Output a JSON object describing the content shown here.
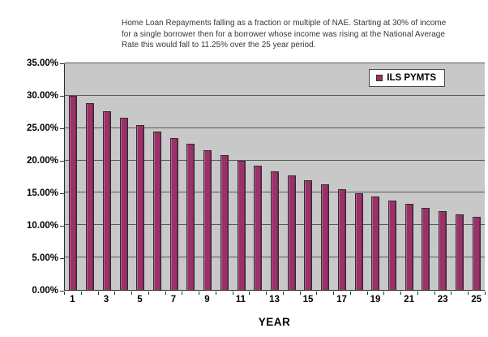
{
  "title": {
    "text": "Home Loan Repayments falling as a fraction or multiple of NAE. Starting at 30% of income for a single borrower then for a borrower whose income was rising at the National Average Rate this would fall to 11.25% over the 25 year period."
  },
  "legend": {
    "label": "ILS PYMTS",
    "marker_color": "#9b3168"
  },
  "axes": {
    "x_label": "YEAR",
    "y_tick_labels": [
      "35.00%",
      "30.00%",
      "25.00%",
      "20.00%",
      "15.00%",
      "10.00%",
      "5.00%",
      "0.00%"
    ],
    "x_tick_labels": [
      "1",
      "3",
      "5",
      "7",
      "9",
      "11",
      "13",
      "15",
      "17",
      "19",
      "21",
      "23",
      "25"
    ]
  },
  "chart_data": {
    "type": "bar",
    "title": "Home Loan Repayments falling as a fraction or multiple of NAE. Starting at 30% of income for a single borrower then for a borrower whose income was rising at the National Average Rate this would fall to 11.25% over the 25 year period.",
    "categories": [
      1,
      2,
      3,
      4,
      5,
      6,
      7,
      8,
      9,
      10,
      11,
      12,
      13,
      14,
      15,
      16,
      17,
      18,
      19,
      20,
      21,
      22,
      23,
      24,
      25
    ],
    "series": [
      {
        "name": "ILS PYMTS",
        "values": [
          30.0,
          28.8,
          27.65,
          26.54,
          25.48,
          24.46,
          23.48,
          22.54,
          21.63,
          20.77,
          19.94,
          19.14,
          18.37,
          17.64,
          16.93,
          16.25,
          15.6,
          14.98,
          14.38,
          13.8,
          13.25,
          12.72,
          12.21,
          11.72,
          11.25
        ]
      }
    ],
    "xlabel": "YEAR",
    "ylabel": "",
    "ylim": [
      0,
      35
    ],
    "y_tick_step": 5,
    "y_tick_format": "percent_2dp",
    "x_tick_label_interval": 2,
    "grid": true,
    "legend_position": "inside-top-right",
    "bar_color": "#9b3168",
    "bar_border_color": "#2e2e2e",
    "plot_background": "#c8c8c8",
    "chart_background": "#ffffff"
  }
}
